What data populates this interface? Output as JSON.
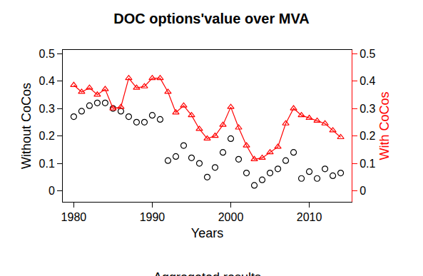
{
  "chart_data": {
    "type": "line",
    "title": "DOC options'value over MVA",
    "subtitle": "Aggregated results",
    "x_label": "Years",
    "y_label": "Without CoCos",
    "y2_label": "With CoCos",
    "x": [
      1980,
      1981,
      1982,
      1983,
      1984,
      1985,
      1986,
      1987,
      1988,
      1989,
      1990,
      1991,
      1992,
      1993,
      1994,
      1995,
      1996,
      1997,
      1998,
      1999,
      2000,
      2001,
      2002,
      2003,
      2004,
      2005,
      2006,
      2007,
      2008,
      2009,
      2010,
      2011,
      2012,
      2013,
      2014
    ],
    "xlim": [
      1978.6,
      2015.4
    ],
    "xticks": [
      1980,
      1990,
      2000,
      2010
    ],
    "ylim": [
      -0.04,
      0.513
    ],
    "yticks": [
      0,
      0.1,
      0.2,
      0.3,
      0.4,
      0.5
    ],
    "y2lim": [
      -0.04,
      0.513
    ],
    "y2ticks": [
      0,
      0.1,
      0.2,
      0.3,
      0.4,
      0.5
    ],
    "grid": false,
    "series": [
      {
        "name": "Without CoCos",
        "color": "#000000",
        "marker": "circle",
        "line_style": "none",
        "values": [
          0.27,
          0.29,
          0.31,
          0.32,
          0.32,
          0.3,
          0.29,
          0.27,
          0.25,
          0.25,
          0.275,
          0.26,
          0.11,
          0.125,
          0.165,
          0.12,
          0.1,
          0.05,
          0.085,
          0.14,
          0.19,
          0.115,
          0.065,
          0.02,
          0.04,
          0.065,
          0.08,
          0.11,
          0.14,
          0.045,
          0.07,
          0.045,
          0.08,
          0.055,
          0.065
        ]
      },
      {
        "name": "With CoCos",
        "color": "#ff0000",
        "marker": "triangle",
        "line_style": "solid",
        "axis": "y2",
        "values": [
          0.385,
          0.36,
          0.375,
          0.35,
          0.37,
          0.3,
          0.305,
          0.41,
          0.375,
          0.38,
          0.41,
          0.41,
          0.36,
          0.285,
          0.31,
          0.275,
          0.225,
          0.19,
          0.2,
          0.24,
          0.305,
          0.23,
          0.165,
          0.115,
          0.12,
          0.14,
          0.16,
          0.245,
          0.3,
          0.275,
          0.265,
          0.255,
          0.245,
          0.22,
          0.195
        ]
      }
    ]
  }
}
